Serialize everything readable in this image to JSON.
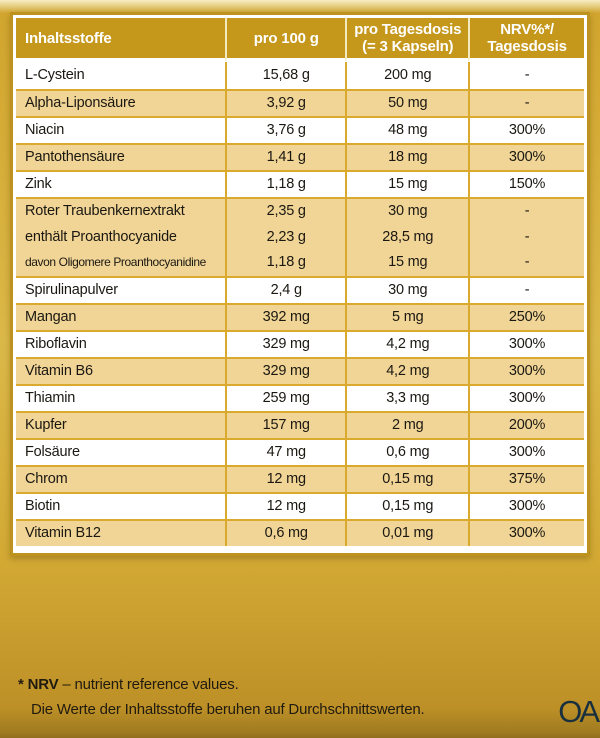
{
  "colors": {
    "header_gold": "#C5981C",
    "row_tint": "#F1D596",
    "grid_gold": "#D9AA2E",
    "outer_border_gold": "#BE921F",
    "background_gold": "#D5AB36",
    "logo_navy": "#18303E"
  },
  "table": {
    "headers": [
      {
        "lines": [
          "Inhaltsstoffe"
        ]
      },
      {
        "lines": [
          "pro 100 g"
        ]
      },
      {
        "lines": [
          "pro Tagesdosis",
          "(= 3 Kapseln)"
        ]
      },
      {
        "lines": [
          "NRV%*/",
          "Tagesdosis"
        ]
      }
    ],
    "rows": [
      {
        "name": [
          "L-Cystein"
        ],
        "per100g": [
          "15,68 g"
        ],
        "daily": [
          "200 mg"
        ],
        "nrv": [
          "-"
        ]
      },
      {
        "name": [
          "Alpha-Liponsäure"
        ],
        "per100g": [
          "3,92 g"
        ],
        "daily": [
          "50 mg"
        ],
        "nrv": [
          "-"
        ]
      },
      {
        "name": [
          "Niacin"
        ],
        "per100g": [
          "3,76 g"
        ],
        "daily": [
          "48 mg"
        ],
        "nrv": [
          "300%"
        ]
      },
      {
        "name": [
          "Pantothensäure"
        ],
        "per100g": [
          "1,41 g"
        ],
        "daily": [
          "18 mg"
        ],
        "nrv": [
          "300%"
        ]
      },
      {
        "name": [
          "Zink"
        ],
        "per100g": [
          "1,18 g"
        ],
        "daily": [
          "15 mg"
        ],
        "nrv": [
          "150%"
        ]
      },
      {
        "name": [
          "Roter Traubenkernextrakt",
          "enthält Proanthocyanide",
          "davon Oligomere Proanthocyanidine"
        ],
        "per100g": [
          "2,35 g",
          "2,23 g",
          "1,18 g"
        ],
        "daily": [
          "30 mg",
          "28,5 mg",
          "15 mg"
        ],
        "nrv": [
          "-",
          "-",
          "-"
        ]
      },
      {
        "name": [
          "Spirulinapulver"
        ],
        "per100g": [
          "2,4 g"
        ],
        "daily": [
          "30 mg"
        ],
        "nrv": [
          "-"
        ]
      },
      {
        "name": [
          "Mangan"
        ],
        "per100g": [
          "392 mg"
        ],
        "daily": [
          "5 mg"
        ],
        "nrv": [
          "250%"
        ]
      },
      {
        "name": [
          "Riboflavin"
        ],
        "per100g": [
          "329 mg"
        ],
        "daily": [
          "4,2 mg"
        ],
        "nrv": [
          "300%"
        ]
      },
      {
        "name": [
          "Vitamin B6"
        ],
        "per100g": [
          "329 mg"
        ],
        "daily": [
          "4,2 mg"
        ],
        "nrv": [
          "300%"
        ]
      },
      {
        "name": [
          "Thiamin"
        ],
        "per100g": [
          "259 mg"
        ],
        "daily": [
          "3,3 mg"
        ],
        "nrv": [
          "300%"
        ]
      },
      {
        "name": [
          "Kupfer"
        ],
        "per100g": [
          "157 mg"
        ],
        "daily": [
          "2 mg"
        ],
        "nrv": [
          "200%"
        ]
      },
      {
        "name": [
          "Folsäure"
        ],
        "per100g": [
          "47 mg"
        ],
        "daily": [
          "0,6 mg"
        ],
        "nrv": [
          "300%"
        ]
      },
      {
        "name": [
          "Chrom"
        ],
        "per100g": [
          "12 mg"
        ],
        "daily": [
          "0,15 mg"
        ],
        "nrv": [
          "375%"
        ]
      },
      {
        "name": [
          "Biotin"
        ],
        "per100g": [
          "12 mg"
        ],
        "daily": [
          "0,15 mg"
        ],
        "nrv": [
          "300%"
        ]
      },
      {
        "name": [
          "Vitamin B12"
        ],
        "per100g": [
          "0,6 mg"
        ],
        "daily": [
          "0,01 mg"
        ],
        "nrv": [
          "300%"
        ]
      }
    ]
  },
  "footnote": {
    "term": "* NRV",
    "definition": " – nutrient reference values.",
    "note": "Die Werte der Inhaltsstoffe beruhen auf Durchschnittswerten."
  },
  "logo": {
    "text": "OA"
  }
}
